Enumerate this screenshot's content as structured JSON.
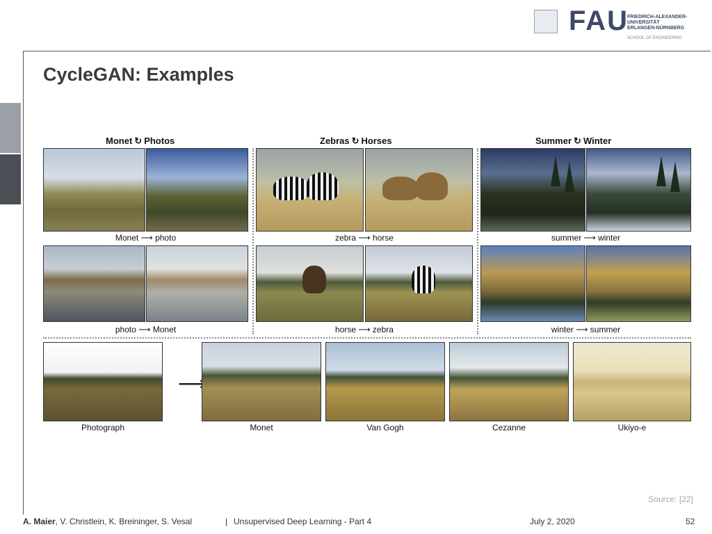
{
  "header": {
    "logo_text": "FAU",
    "university_lines": [
      "FRIEDRICH-ALEXANDER-",
      "UNIVERSITÄT",
      "ERLANGEN-NÜRNBERG"
    ],
    "school": "SCHOOL OF ENGINEERING"
  },
  "slide": {
    "title": "CycleGAN: Examples"
  },
  "figure": {
    "cycle_glyph": "↻",
    "groups": [
      {
        "left": "Monet",
        "right": "Photos",
        "caption_top": "Monet ⟶ photo",
        "caption_bottom": "photo ⟶ Monet"
      },
      {
        "left": "Zebras",
        "right": "Horses",
        "caption_top": "zebra ⟶ horse",
        "caption_bottom": "horse ⟶ zebra"
      },
      {
        "left": "Summer",
        "right": "Winter",
        "caption_top": "summer ⟶ winter",
        "caption_bottom": "winter ⟶ summer"
      }
    ],
    "arrow": "⟶",
    "style_row": [
      "Photograph",
      "Monet",
      "Van Gogh",
      "Cezanne",
      "Ukiyo-e"
    ]
  },
  "source": "Source: [22]",
  "footer": {
    "lead_author": "A. Maier",
    "coauthors": ", V. Christlein, K. Breininger, S. Vesal",
    "separator": "|",
    "course": "Unsupervised Deep Learning - Part 4",
    "date": "July 2, 2020",
    "page": "52"
  }
}
